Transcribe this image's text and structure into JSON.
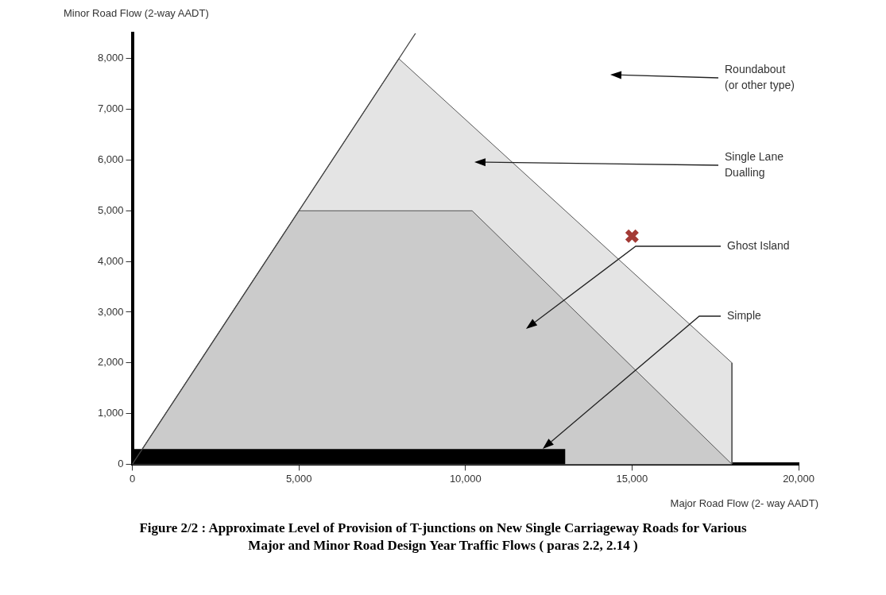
{
  "chart_data": {
    "type": "area",
    "title": "Figure 2/2 : Approximate Level of Provision of T-junctions on New Single Carriageway Roads for Various\nMajor and Minor Road Design Year Traffic Flows ( paras 2.2, 2.14 )",
    "xlabel": "Major Road Flow (2- way AADT)",
    "ylabel": "Minor Road Flow (2-way AADT)",
    "xlim": [
      0,
      20000
    ],
    "xticks": [
      0,
      {
        "value": 5000,
        "label": "5,000"
      },
      {
        "value": 10000,
        "label": "10,000"
      },
      {
        "value": 15000,
        "label": "15,000"
      },
      {
        "value": 20000,
        "label": "20,000"
      }
    ],
    "ylim": [
      0,
      8500
    ],
    "yticks": [
      0,
      {
        "value": 1000,
        "label": "1,000"
      },
      {
        "value": 2000,
        "label": "2,000"
      },
      {
        "value": 3000,
        "label": "3,000"
      },
      {
        "value": 4000,
        "label": "4,000"
      },
      {
        "value": 5000,
        "label": "5,000"
      },
      {
        "value": 6000,
        "label": "6,000"
      },
      {
        "value": 7000,
        "label": "7,000"
      },
      {
        "value": 8000,
        "label": "8,000"
      }
    ],
    "grid": false,
    "legend": false,
    "series": [
      {
        "color": "#e4e4e4",
        "x": [
          0,
          8000,
          18000,
          18000
        ],
        "values": [
          0,
          8000,
          2000,
          0
        ]
      },
      {
        "color": "#cbcbcb",
        "x": [
          0,
          5000,
          10200,
          18000
        ],
        "values": [
          0,
          5000,
          5000,
          0
        ]
      },
      {
        "color": "#000000",
        "x": [
          0,
          13000
        ],
        "values": [
          300,
          300
        ]
      },
      {
        "type": "line",
        "color": "#444444",
        "x": [
          0,
          8500
        ],
        "values": [
          0,
          8500
        ]
      },
      {
        "type": "scatter",
        "color": "#a33a35",
        "marker": "cross",
        "x": [
          15000
        ],
        "values": [
          4500
        ]
      }
    ],
    "annotations": [
      "Roundabout\n(or other type)",
      "Single Lane\nDualling",
      "Ghost Island",
      "Simple"
    ]
  }
}
